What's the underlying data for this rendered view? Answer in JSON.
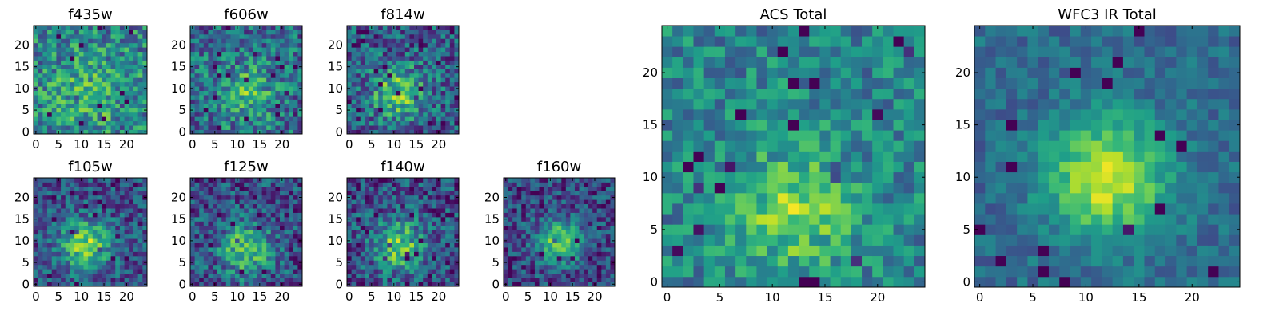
{
  "chart_data": [
    {
      "type": "heatmap",
      "title": "f435w",
      "xticks": [
        0,
        5,
        10,
        15,
        20
      ],
      "yticks": [
        0,
        5,
        10,
        15,
        20
      ],
      "grid_size": 25,
      "xlim": [
        0,
        24
      ],
      "ylim": [
        0,
        24
      ],
      "colormap": "viridis",
      "center": [
        12,
        9
      ],
      "sigma": 6,
      "peak": 0.18,
      "noise": 0.55,
      "noise_base": 0.45,
      "seed": 11,
      "grid": false
    },
    {
      "type": "heatmap",
      "title": "f606w",
      "xticks": [
        0,
        5,
        10,
        15,
        20
      ],
      "yticks": [
        0,
        5,
        10,
        15,
        20
      ],
      "grid_size": 25,
      "xlim": [
        0,
        24
      ],
      "ylim": [
        0,
        24
      ],
      "colormap": "viridis",
      "center": [
        12,
        9
      ],
      "sigma": 5,
      "peak": 0.3,
      "noise": 0.55,
      "noise_base": 0.35,
      "seed": 23,
      "grid": false
    },
    {
      "type": "heatmap",
      "title": "f814w",
      "xticks": [
        0,
        5,
        10,
        15,
        20
      ],
      "yticks": [
        0,
        5,
        10,
        15,
        20
      ],
      "grid_size": 25,
      "xlim": [
        0,
        24
      ],
      "ylim": [
        0,
        24
      ],
      "colormap": "viridis",
      "center": [
        11,
        9
      ],
      "sigma": 4.5,
      "peak": 0.45,
      "noise": 0.55,
      "noise_base": 0.28,
      "seed": 37,
      "grid": false
    },
    {
      "type": "heatmap",
      "title": "f105w",
      "xticks": [
        0,
        5,
        10,
        15,
        20
      ],
      "yticks": [
        0,
        5,
        10,
        15,
        20
      ],
      "grid_size": 25,
      "xlim": [
        0,
        24
      ],
      "ylim": [
        0,
        24
      ],
      "colormap": "viridis",
      "center": [
        11,
        9
      ],
      "sigma": 4,
      "peak": 0.55,
      "noise": 0.45,
      "noise_base": 0.25,
      "seed": 41,
      "grid": false
    },
    {
      "type": "heatmap",
      "title": "f125w",
      "xticks": [
        0,
        5,
        10,
        15,
        20
      ],
      "yticks": [
        0,
        5,
        10,
        15,
        20
      ],
      "grid_size": 25,
      "xlim": [
        0,
        24
      ],
      "ylim": [
        0,
        24
      ],
      "colormap": "viridis",
      "center": [
        12,
        8
      ],
      "sigma": 4,
      "peak": 0.5,
      "noise": 0.5,
      "noise_base": 0.25,
      "seed": 53,
      "grid": false
    },
    {
      "type": "heatmap",
      "title": "f140w",
      "xticks": [
        0,
        5,
        10,
        15,
        20
      ],
      "yticks": [
        0,
        5,
        10,
        15,
        20
      ],
      "grid_size": 25,
      "xlim": [
        0,
        24
      ],
      "ylim": [
        0,
        24
      ],
      "colormap": "viridis",
      "center": [
        11,
        9
      ],
      "sigma": 4,
      "peak": 0.5,
      "noise": 0.5,
      "noise_base": 0.25,
      "seed": 67,
      "grid": false
    },
    {
      "type": "heatmap",
      "title": "f160w",
      "xticks": [
        0,
        5,
        10,
        15,
        20
      ],
      "yticks": [
        0,
        5,
        10,
        15,
        20
      ],
      "grid_size": 25,
      "xlim": [
        0,
        24
      ],
      "ylim": [
        0,
        24
      ],
      "colormap": "viridis",
      "center": [
        12,
        10
      ],
      "sigma": 3.5,
      "peak": 0.55,
      "noise": 0.45,
      "noise_base": 0.22,
      "seed": 79,
      "grid": false
    },
    {
      "type": "heatmap",
      "title": "ACS Total",
      "xticks": [
        0,
        5,
        10,
        15,
        20
      ],
      "yticks": [
        0,
        5,
        10,
        15,
        20
      ],
      "grid_size": 25,
      "xlim": [
        0,
        24
      ],
      "ylim": [
        0,
        24
      ],
      "colormap": "viridis",
      "center": [
        12,
        7
      ],
      "sigma": 4,
      "peak": 0.35,
      "noise": 0.4,
      "noise_base": 0.45,
      "seed": 97,
      "grid": false
    },
    {
      "type": "heatmap",
      "title": "WFC3 IR Total",
      "xticks": [
        0,
        5,
        10,
        15,
        20
      ],
      "yticks": [
        0,
        5,
        10,
        15,
        20
      ],
      "grid_size": 25,
      "xlim": [
        0,
        24
      ],
      "ylim": [
        0,
        24
      ],
      "colormap": "viridis",
      "center": [
        12,
        10
      ],
      "sigma": 3.8,
      "peak": 0.6,
      "noise": 0.25,
      "noise_base": 0.35,
      "seed": 113,
      "grid": false
    }
  ]
}
